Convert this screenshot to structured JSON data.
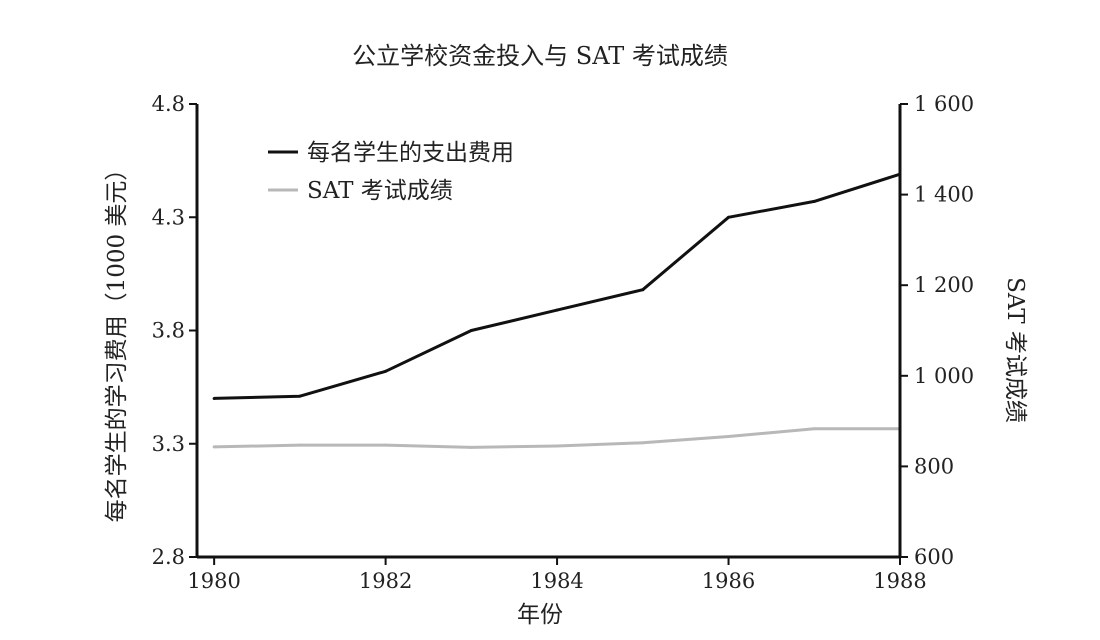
{
  "chart_data": {
    "type": "line",
    "title": "公立学校资金投入与 SAT 考试成绩",
    "xlabel": "年份",
    "ylabel_left": "每名学生的学习费用（1000 美元）",
    "ylabel_right": "SAT 考试成绩",
    "x": [
      1980,
      1981,
      1982,
      1983,
      1984,
      1985,
      1986,
      1987,
      1988
    ],
    "xlim": [
      1979.8,
      1988
    ],
    "x_ticks": [
      1980,
      1982,
      1984,
      1986,
      1988
    ],
    "x_tick_labels": [
      "1980",
      "1982",
      "1984",
      "1986",
      "1988"
    ],
    "ylim_left": [
      2.8,
      4.8
    ],
    "y_ticks_left": [
      2.8,
      3.3,
      3.8,
      4.3,
      4.8
    ],
    "y_tick_labels_left": [
      "2.8",
      "3.3",
      "3.8",
      "4.3",
      "4.8"
    ],
    "ylim_right": [
      600,
      1600
    ],
    "y_ticks_right": [
      600,
      800,
      1000,
      1200,
      1400,
      1600
    ],
    "y_tick_labels_right": [
      "600",
      "800",
      "1 000",
      "1 200",
      "1 400",
      "1 600"
    ],
    "grid": false,
    "legend_position": "top-left",
    "series": [
      {
        "name": "每名学生的支出费用",
        "axis": "left",
        "color": "#111111",
        "values": [
          3.5,
          3.51,
          3.62,
          3.8,
          3.89,
          3.98,
          4.3,
          4.37,
          4.49
        ]
      },
      {
        "name": "SAT 考试成绩",
        "axis": "right",
        "color": "#b8b8b8",
        "values": [
          843,
          847,
          847,
          842,
          845,
          852,
          866,
          883,
          883
        ]
      }
    ]
  }
}
